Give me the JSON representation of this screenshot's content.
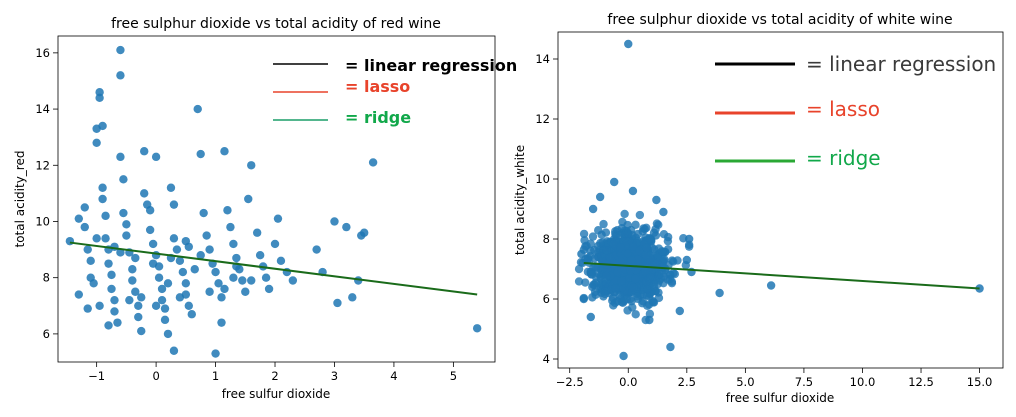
{
  "chart_data": [
    {
      "type": "scatter",
      "title": "free sulphur dioxide vs total acidity of red wine",
      "xlabel": "free sulfur dioxide",
      "ylabel": "total acidity_red",
      "xlim": [
        -1.65,
        5.7
      ],
      "ylim": [
        5.0,
        16.6
      ],
      "xticks": [
        -1,
        0,
        1,
        2,
        3,
        4,
        5
      ],
      "yticks": [
        6,
        8,
        10,
        12,
        14,
        16
      ],
      "grid": false,
      "point_color": "#1f77b4",
      "legend": {
        "placement": "top-right",
        "entries": [
          {
            "label": "= linear regression",
            "color": "#000000",
            "text_color": "#000000"
          },
          {
            "label": "= lasso",
            "color": "#e8432b",
            "text_color": "#e8432b"
          },
          {
            "label": "= ridge",
            "color": "#1a9e68",
            "text_color": "#11a84a"
          }
        ]
      },
      "regression_line": {
        "color": "#1a6b1a",
        "points": [
          [
            -1.45,
            9.25
          ],
          [
            5.4,
            7.4
          ]
        ]
      },
      "points": [
        [
          -1.45,
          9.3
        ],
        [
          -1.3,
          10.1
        ],
        [
          -1.2,
          10.5
        ],
        [
          -1.2,
          9.8
        ],
        [
          -1.15,
          9.0
        ],
        [
          -1.1,
          8.6
        ],
        [
          -1.1,
          8.0
        ],
        [
          -1.05,
          7.8
        ],
        [
          -1.0,
          13.3
        ],
        [
          -1.0,
          12.8
        ],
        [
          -0.95,
          14.6
        ],
        [
          -0.95,
          14.4
        ],
        [
          -0.9,
          13.4
        ],
        [
          -0.9,
          11.2
        ],
        [
          -0.9,
          10.8
        ],
        [
          -0.85,
          10.2
        ],
        [
          -0.85,
          9.4
        ],
        [
          -0.8,
          9.0
        ],
        [
          -0.8,
          8.5
        ],
        [
          -0.75,
          8.1
        ],
        [
          -0.75,
          7.6
        ],
        [
          -0.7,
          7.2
        ],
        [
          -0.7,
          6.8
        ],
        [
          -0.65,
          6.4
        ],
        [
          -0.6,
          16.1
        ],
        [
          -0.6,
          15.2
        ],
        [
          -0.6,
          12.3
        ],
        [
          -0.55,
          11.5
        ],
        [
          -0.55,
          10.3
        ],
        [
          -0.5,
          9.9
        ],
        [
          -0.5,
          9.5
        ],
        [
          -0.45,
          8.9
        ],
        [
          -0.4,
          8.3
        ],
        [
          -0.4,
          7.9
        ],
        [
          -0.35,
          7.5
        ],
        [
          -0.3,
          7.0
        ],
        [
          -0.3,
          6.6
        ],
        [
          -0.25,
          6.1
        ],
        [
          -0.2,
          12.5
        ],
        [
          -0.2,
          11.0
        ],
        [
          -0.15,
          10.6
        ],
        [
          -0.1,
          10.4
        ],
        [
          -0.1,
          9.7
        ],
        [
          -0.05,
          9.2
        ],
        [
          0.0,
          12.3
        ],
        [
          0.0,
          8.8
        ],
        [
          0.05,
          8.4
        ],
        [
          0.05,
          8.0
        ],
        [
          0.1,
          7.6
        ],
        [
          0.1,
          7.2
        ],
        [
          0.15,
          6.9
        ],
        [
          0.15,
          6.5
        ],
        [
          0.2,
          6.0
        ],
        [
          0.25,
          11.2
        ],
        [
          0.3,
          10.6
        ],
        [
          0.3,
          9.4
        ],
        [
          0.35,
          9.0
        ],
        [
          0.4,
          8.6
        ],
        [
          0.45,
          8.2
        ],
        [
          0.5,
          7.8
        ],
        [
          0.5,
          7.4
        ],
        [
          0.55,
          7.0
        ],
        [
          0.6,
          6.7
        ],
        [
          0.3,
          5.4
        ],
        [
          0.5,
          9.3
        ],
        [
          0.55,
          9.1
        ],
        [
          0.7,
          14.0
        ],
        [
          0.75,
          12.4
        ],
        [
          0.8,
          10.3
        ],
        [
          0.85,
          9.5
        ],
        [
          0.9,
          9.0
        ],
        [
          0.95,
          8.5
        ],
        [
          1.0,
          8.2
        ],
        [
          1.0,
          5.3
        ],
        [
          1.05,
          7.8
        ],
        [
          1.1,
          7.3
        ],
        [
          1.1,
          6.4
        ],
        [
          1.15,
          12.5
        ],
        [
          1.2,
          10.4
        ],
        [
          1.25,
          9.8
        ],
        [
          1.3,
          9.2
        ],
        [
          1.35,
          8.7
        ],
        [
          1.4,
          8.3
        ],
        [
          1.45,
          7.9
        ],
        [
          1.5,
          7.5
        ],
        [
          1.55,
          10.8
        ],
        [
          1.6,
          12.0
        ],
        [
          1.7,
          9.6
        ],
        [
          1.75,
          8.8
        ],
        [
          1.8,
          8.4
        ],
        [
          1.85,
          8.0
        ],
        [
          1.9,
          7.6
        ],
        [
          2.0,
          9.2
        ],
        [
          2.05,
          10.1
        ],
        [
          2.1,
          8.6
        ],
        [
          2.2,
          8.2
        ],
        [
          2.3,
          7.9
        ],
        [
          2.7,
          9.0
        ],
        [
          2.8,
          8.2
        ],
        [
          3.0,
          10.0
        ],
        [
          3.05,
          7.1
        ],
        [
          3.2,
          9.8
        ],
        [
          3.3,
          7.3
        ],
        [
          3.45,
          9.5
        ],
        [
          3.5,
          9.6
        ],
        [
          3.4,
          7.9
        ],
        [
          3.65,
          12.1
        ],
        [
          5.4,
          6.2
        ],
        [
          -1.3,
          7.4
        ],
        [
          -1.15,
          6.9
        ],
        [
          -0.95,
          7.0
        ],
        [
          -0.8,
          6.3
        ],
        [
          -0.6,
          8.9
        ],
        [
          -0.45,
          7.2
        ],
        [
          -0.25,
          7.3
        ],
        [
          0.0,
          7.0
        ],
        [
          0.2,
          7.8
        ],
        [
          0.4,
          7.3
        ],
        [
          0.65,
          8.3
        ],
        [
          0.9,
          7.5
        ],
        [
          1.15,
          7.6
        ],
        [
          1.3,
          8.0
        ],
        [
          1.6,
          7.9
        ],
        [
          -1.0,
          9.4
        ],
        [
          -0.7,
          9.1
        ],
        [
          -0.35,
          8.7
        ],
        [
          -0.05,
          8.5
        ],
        [
          0.25,
          8.7
        ],
        [
          0.75,
          8.8
        ],
        [
          1.35,
          8.4
        ]
      ]
    },
    {
      "type": "scatter",
      "title": "free sulphur dioxide vs total acidity of white wine",
      "xlabel": "free sulfur dioxide",
      "ylabel": "total acidity_white",
      "xlim": [
        -3.0,
        16.0
      ],
      "ylim": [
        3.7,
        14.9
      ],
      "xticks": [
        -2.5,
        0.0,
        2.5,
        5.0,
        7.5,
        10.0,
        12.5,
        15.0
      ],
      "xtick_labels": [
        "−2.5",
        "0.0",
        "2.5",
        "5.0",
        "7.5",
        "10.0",
        "12.5",
        "15.0"
      ],
      "yticks": [
        4,
        6,
        8,
        10,
        12,
        14
      ],
      "grid": false,
      "point_color": "#1f77b4",
      "legend": {
        "placement": "top-right",
        "entries": [
          {
            "label": "= linear regression",
            "color": "#000000",
            "text_color": "#3a3a3a"
          },
          {
            "label": "= lasso",
            "color": "#e8432b",
            "text_color": "#e8432b"
          },
          {
            "label": "= ridge",
            "color": "#2aa834",
            "text_color": "#11a84a"
          }
        ]
      },
      "regression_line": {
        "color": "#1a6b1a",
        "points": [
          [
            -1.9,
            7.2
          ],
          [
            15.0,
            6.35
          ]
        ]
      },
      "cluster": {
        "x_center": 0.0,
        "x_spread": 1.3,
        "y_center": 7.1,
        "y_spread": 0.85,
        "count": 900
      },
      "points": [
        [
          0.0,
          14.5
        ],
        [
          -0.6,
          9.9
        ],
        [
          0.2,
          9.6
        ],
        [
          -1.5,
          9.0
        ],
        [
          1.5,
          8.9
        ],
        [
          -0.2,
          4.1
        ],
        [
          1.8,
          4.4
        ],
        [
          2.5,
          7.3
        ],
        [
          3.9,
          6.2
        ],
        [
          6.1,
          6.45
        ],
        [
          15.0,
          6.35
        ],
        [
          -1.9,
          6.0
        ],
        [
          2.2,
          5.6
        ],
        [
          -1.6,
          5.4
        ],
        [
          0.9,
          5.3
        ],
        [
          2.6,
          8.0
        ],
        [
          -2.0,
          7.5
        ],
        [
          2.7,
          6.9
        ],
        [
          1.2,
          9.3
        ],
        [
          -1.2,
          9.4
        ]
      ]
    }
  ]
}
